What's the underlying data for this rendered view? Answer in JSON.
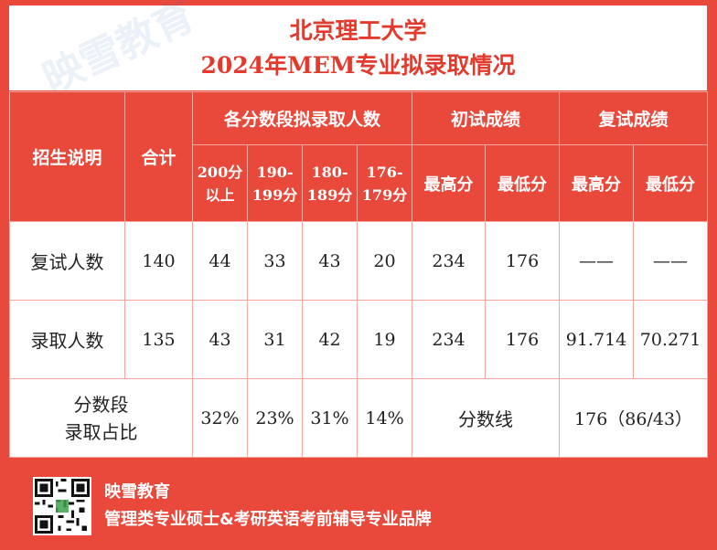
{
  "title": {
    "line1": "北京理工大学",
    "line2": "2024年MEM专业拟录取情况"
  },
  "header": {
    "col_label": "招生说明",
    "col_total": "合计",
    "group_score_bands": "各分数段拟录取人数",
    "group_initial": "初试成绩",
    "group_retest": "复试成绩",
    "bands": [
      "200分以上",
      "190-199分",
      "180-189分",
      "176-179分"
    ],
    "initial_max": "最高分",
    "initial_min": "最低分",
    "retest_max": "最高分",
    "retest_min": "最低分"
  },
  "rows": [
    {
      "label": "复试人数",
      "total": "140",
      "bands": [
        "44",
        "33",
        "43",
        "20"
      ],
      "initial_max": "234",
      "initial_min": "176",
      "retest_max": "——",
      "retest_min": "——"
    },
    {
      "label": "录取人数",
      "total": "135",
      "bands": [
        "43",
        "31",
        "42",
        "19"
      ],
      "initial_max": "234",
      "initial_min": "176",
      "retest_max": "91.714",
      "retest_min": "70.271"
    }
  ],
  "ratio_row": {
    "label_line1": "分数段",
    "label_line2": "录取占比",
    "bands": [
      "32%",
      "23%",
      "31%",
      "14%"
    ],
    "score_line_label": "分数线",
    "score_line_value": "176（86/43）"
  },
  "footer": {
    "brand": "映雪教育",
    "slogan": "管理类专业硕士&考研英语考前辅导专业品牌",
    "qr_icon": "qr-code-icon"
  },
  "colors": {
    "brand_red": "#e8493a",
    "title_red": "#e23b2e"
  }
}
